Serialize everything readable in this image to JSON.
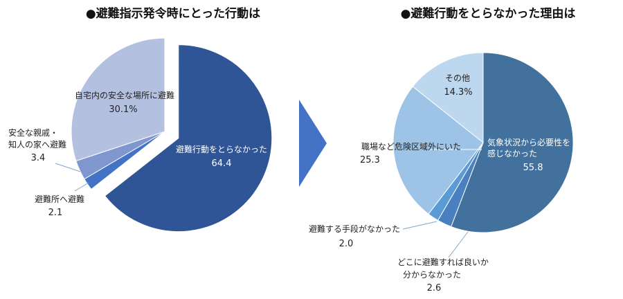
{
  "chart_data": [
    {
      "type": "pie",
      "title": "●避難指示発令時にとった行動は",
      "slices": [
        {
          "label": "避難行動をとらなかった",
          "value": 64.4,
          "value_text": "64.4",
          "color": "#2f5597"
        },
        {
          "label": "避難所へ避難",
          "value": 2.1,
          "value_text": "2.1",
          "color": "#4472c4"
        },
        {
          "label": "安全な親戚・知人の家へ避難",
          "label_lines": [
            "安全な親戚・",
            "知人の家へ避難"
          ],
          "value": 3.4,
          "value_text": "3.4",
          "color": "#7f96cf"
        },
        {
          "label": "自宅内の安全な場所に避難",
          "value": 30.1,
          "value_text": "30.1%",
          "color": "#b4c0e0"
        }
      ]
    },
    {
      "type": "pie",
      "title": "●避難行動をとらなかった理由は",
      "slices": [
        {
          "label": "気象状況から必要性を感じなかった",
          "label_lines": [
            "気象状況から必要性を",
            "感じなかった"
          ],
          "value": 55.8,
          "value_text": "55.8",
          "color": "#41719c"
        },
        {
          "label": "どこに避難すれば良いか分からなかった",
          "label_lines": [
            "どこに避難すれば良いか",
            "分からなかった"
          ],
          "value": 2.6,
          "value_text": "2.6",
          "color": "#4a7fc0"
        },
        {
          "label": "避難する手段がなかった",
          "value": 2.0,
          "value_text": "2.0",
          "color": "#5b9bd5"
        },
        {
          "label": "職場など危険区域外にいた",
          "value": 25.3,
          "value_text": "25.3",
          "color": "#9dc3e6"
        },
        {
          "label": "その他",
          "value": 14.3,
          "value_text": "14.3%",
          "color": "#bdd7ee"
        }
      ]
    }
  ],
  "arrow_color": "#4472c4"
}
